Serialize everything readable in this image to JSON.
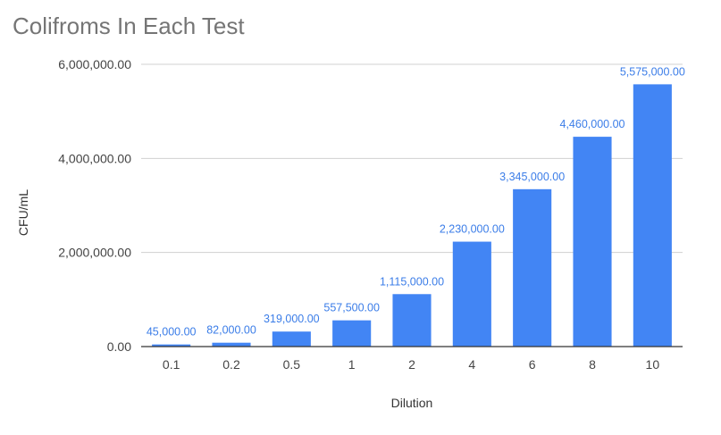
{
  "chart_data": {
    "type": "bar",
    "title": "Colifroms In Each Test",
    "xlabel": "Dilution",
    "ylabel": "CFU/mL",
    "categories": [
      "0.1",
      "0.2",
      "0.5",
      "1",
      "2",
      "4",
      "6",
      "8",
      "10"
    ],
    "values": [
      45000,
      82000,
      319000,
      557500,
      1115000,
      2230000,
      3345000,
      4460000,
      5575000
    ],
    "data_labels": [
      "45,000.00",
      "82,000.00",
      "319,000.00",
      "557,500.00",
      "1,115,000.00",
      "2,230,000.00",
      "3,345,000.00",
      "4,460,000.00",
      "5,575,000.00"
    ],
    "ylim": [
      0,
      6000000
    ],
    "yticks": [
      0,
      2000000,
      4000000,
      6000000
    ],
    "ytick_labels": [
      "0.00",
      "2,000,000.00",
      "4,000,000.00",
      "6,000,000.00"
    ],
    "grid": true,
    "legend": "none",
    "bar_color": "#4285f4",
    "label_color": "#3b7de8"
  }
}
